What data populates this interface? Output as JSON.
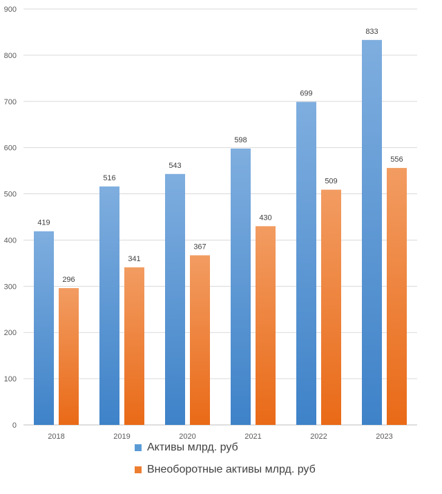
{
  "chart_data": {
    "type": "bar",
    "categories": [
      "2018",
      "2019",
      "2020",
      "2021",
      "2022",
      "2023"
    ],
    "series": [
      {
        "name": "Активы млрд. руб",
        "values": [
          419,
          516,
          543,
          598,
          699,
          833
        ],
        "color": "#5B9BD5"
      },
      {
        "name": "Внеоборотные активы млрд. руб",
        "values": [
          296,
          341,
          367,
          430,
          509,
          556
        ],
        "color": "#ED7D31"
      }
    ],
    "yticks": [
      "0",
      "100",
      "200",
      "300",
      "400",
      "500",
      "600",
      "700",
      "800",
      "900"
    ],
    "ylim": [
      0,
      900
    ],
    "grid": true,
    "legend_position": "bottom"
  }
}
